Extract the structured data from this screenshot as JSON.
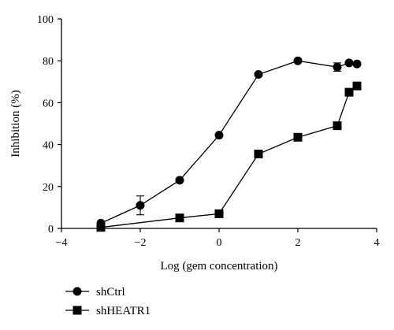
{
  "chart_data": {
    "type": "line",
    "title": "",
    "xlabel": "Log (gem concentration)",
    "ylabel": "Inhibition (%)",
    "xlim": [
      -4,
      4
    ],
    "ylim": [
      0,
      100
    ],
    "xticks": [
      -4,
      -2,
      0,
      2,
      4
    ],
    "yticks": [
      0,
      20,
      40,
      60,
      80,
      100
    ],
    "xtick_labels": [
      "−4",
      "−2",
      "0",
      "2",
      "4"
    ],
    "ytick_labels": [
      "0",
      "20",
      "40",
      "60",
      "80",
      "100"
    ],
    "grid": false,
    "legend_position": "bottom-left",
    "series": [
      {
        "name": "shCtrl",
        "marker": "circle",
        "color": "#000000",
        "x": [
          -3,
          -2,
          -1,
          0,
          1,
          2,
          3,
          3.3,
          3.5
        ],
        "y": [
          2.5,
          11,
          23,
          44.5,
          73.5,
          80,
          77,
          79,
          78.5
        ],
        "error": [
          0,
          4.5,
          0,
          0,
          0,
          0,
          2,
          0,
          0
        ]
      },
      {
        "name": "shHEATR1",
        "marker": "square",
        "color": "#000000",
        "x": [
          -3,
          -1,
          0,
          1,
          2,
          3,
          3.3,
          3.5
        ],
        "y": [
          0.5,
          5,
          7,
          35.5,
          43.5,
          49,
          65,
          68
        ],
        "error": [
          0,
          0,
          0,
          0,
          0,
          0,
          0,
          0
        ]
      }
    ]
  }
}
